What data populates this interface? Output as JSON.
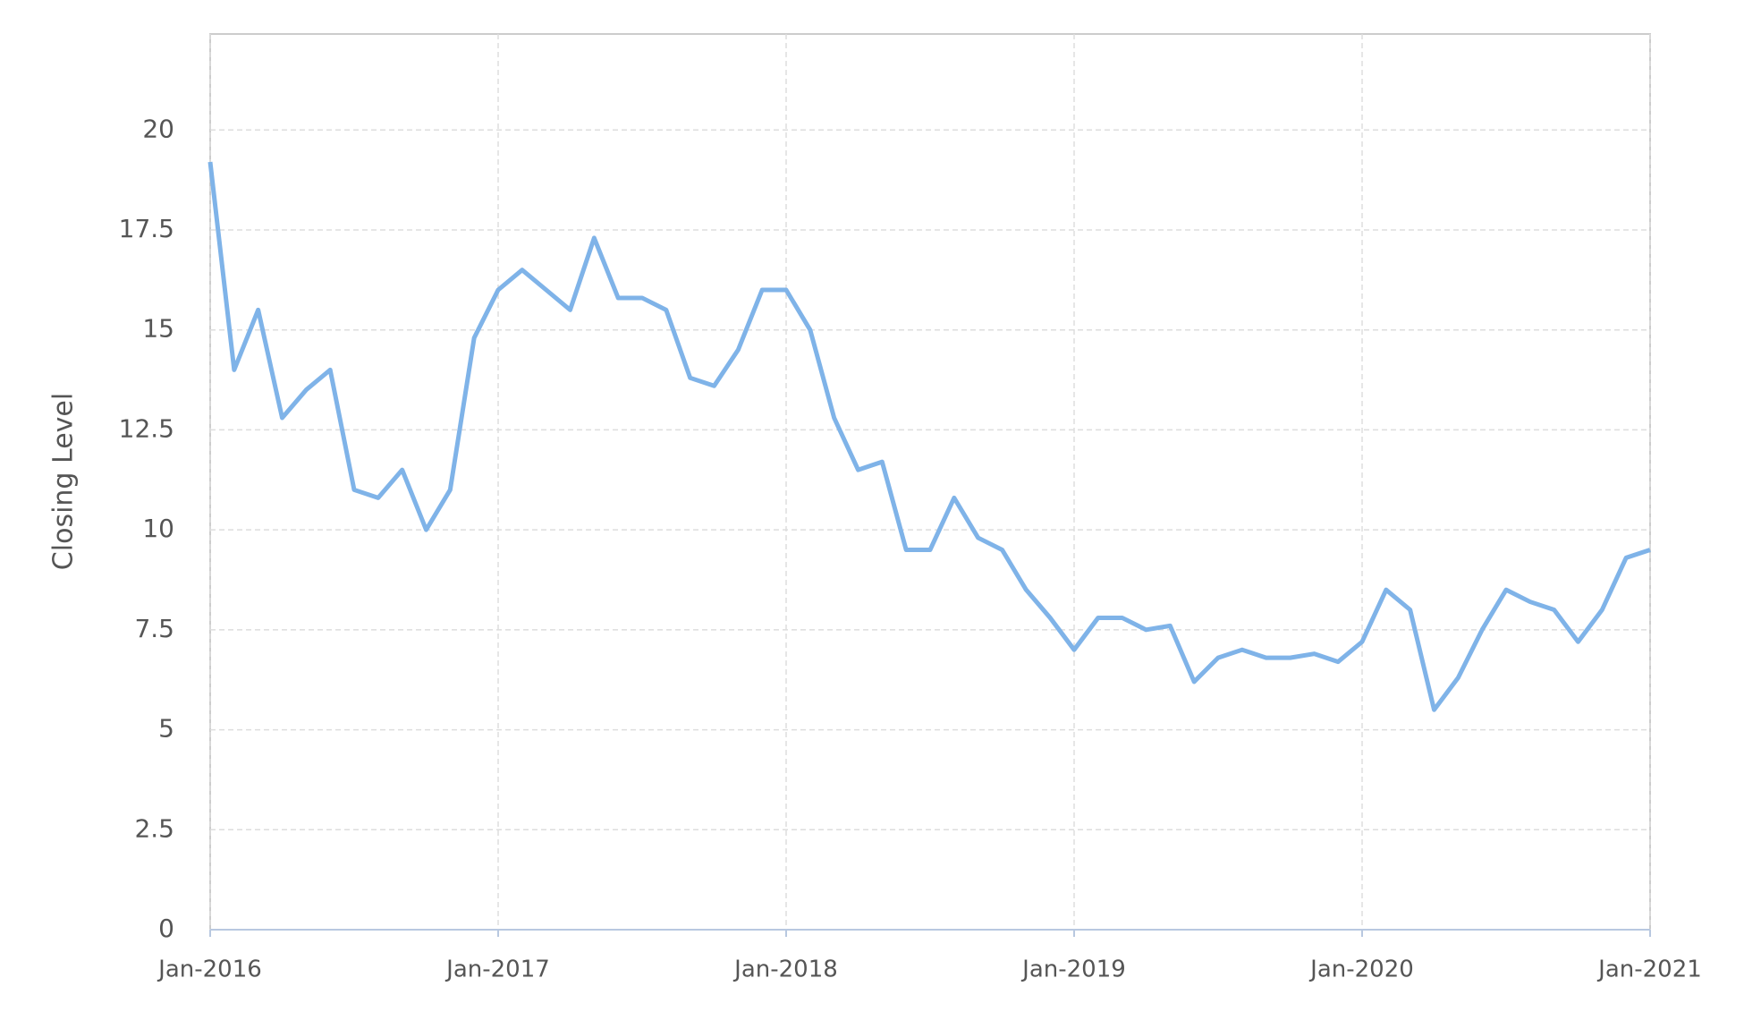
{
  "chart_data": {
    "type": "line",
    "y_label": "Closing Level",
    "x": [
      "2016-01",
      "2016-02",
      "2016-03",
      "2016-04",
      "2016-05",
      "2016-06",
      "2016-07",
      "2016-08",
      "2016-09",
      "2016-10",
      "2016-11",
      "2016-12",
      "2017-01",
      "2017-02",
      "2017-03",
      "2017-04",
      "2017-05",
      "2017-06",
      "2017-07",
      "2017-08",
      "2017-09",
      "2017-10",
      "2017-11",
      "2017-12",
      "2018-01",
      "2018-02",
      "2018-03",
      "2018-04",
      "2018-05",
      "2018-06",
      "2018-07",
      "2018-08",
      "2018-09",
      "2018-10",
      "2018-11",
      "2018-12",
      "2019-01",
      "2019-02",
      "2019-03",
      "2019-04",
      "2019-05",
      "2019-06",
      "2019-07",
      "2019-08",
      "2019-09",
      "2019-10",
      "2019-11",
      "2019-12",
      "2020-01",
      "2020-02",
      "2020-03",
      "2020-04",
      "2020-05",
      "2020-06",
      "2020-07",
      "2020-08",
      "2020-09",
      "2020-10",
      "2020-11",
      "2020-12",
      "2021-01"
    ],
    "series": [
      {
        "name": "Closing Level",
        "color": "#7fb3e8",
        "values": [
          19.2,
          14,
          15.5,
          12.8,
          13.5,
          14,
          11,
          10.8,
          11.5,
          10,
          11,
          14.8,
          16,
          16.5,
          16,
          15.5,
          17.3,
          15.8,
          15.8,
          15.5,
          13.8,
          13.6,
          14.5,
          16,
          16,
          15,
          12.8,
          11.5,
          11.7,
          9.5,
          9.5,
          10.8,
          9.8,
          9.5,
          8.5,
          7.8,
          7,
          7.8,
          7.8,
          7.5,
          7.6,
          6.2,
          6.8,
          7,
          6.8,
          6.8,
          6.9,
          6.7,
          7.2,
          8.5,
          8,
          5.5,
          6.3,
          7.5,
          8.5,
          8.2,
          8,
          7.2,
          8,
          9.3,
          9.5
        ]
      }
    ],
    "xlim": [
      "2016-01",
      "2021-01"
    ],
    "xticks": [
      {
        "value": "2016-01",
        "label": "Jan-2016"
      },
      {
        "value": "2017-01",
        "label": "Jan-2017"
      },
      {
        "value": "2018-01",
        "label": "Jan-2018"
      },
      {
        "value": "2019-01",
        "label": "Jan-2019"
      },
      {
        "value": "2020-01",
        "label": "Jan-2020"
      },
      {
        "value": "2021-01",
        "label": "Jan-2021"
      }
    ],
    "ylim": [
      0,
      22.4
    ],
    "yticks": [
      0,
      2.5,
      5,
      7.5,
      10,
      12.5,
      15,
      17.5,
      20
    ],
    "grid": true
  }
}
